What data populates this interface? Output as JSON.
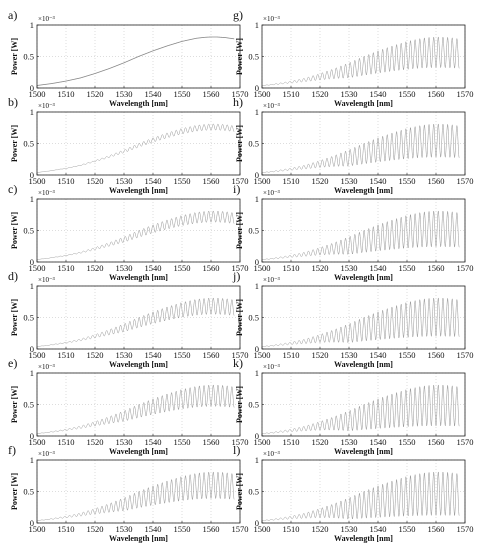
{
  "figure": {
    "panels": [
      {
        "letter": "a)",
        "col": 0,
        "row": 0,
        "mod_depth": 0.0,
        "mod_period_nm": 1.6,
        "envelope_only": true
      },
      {
        "letter": "b)",
        "col": 0,
        "row": 1,
        "mod_depth": 0.12,
        "mod_period_nm": 1.6
      },
      {
        "letter": "c)",
        "col": 0,
        "row": 2,
        "mod_depth": 0.22,
        "mod_period_nm": 1.6
      },
      {
        "letter": "d)",
        "col": 0,
        "row": 3,
        "mod_depth": 0.32,
        "mod_period_nm": 1.6
      },
      {
        "letter": "e)",
        "col": 0,
        "row": 4,
        "mod_depth": 0.42,
        "mod_period_nm": 1.6
      },
      {
        "letter": "f)",
        "col": 0,
        "row": 5,
        "mod_depth": 0.52,
        "mod_period_nm": 1.6
      },
      {
        "letter": "g)",
        "col": 1,
        "row": 0,
        "mod_depth": 0.6,
        "mod_period_nm": 1.6
      },
      {
        "letter": "h)",
        "col": 1,
        "row": 1,
        "mod_depth": 0.65,
        "mod_period_nm": 1.6
      },
      {
        "letter": "i)",
        "col": 1,
        "row": 2,
        "mod_depth": 0.7,
        "mod_period_nm": 1.6
      },
      {
        "letter": "j)",
        "col": 1,
        "row": 3,
        "mod_depth": 0.75,
        "mod_period_nm": 1.6
      },
      {
        "letter": "k)",
        "col": 1,
        "row": 4,
        "mod_depth": 0.8,
        "mod_period_nm": 1.6
      },
      {
        "letter": "l)",
        "col": 1,
        "row": 5,
        "mod_depth": 0.85,
        "mod_period_nm": 1.6
      }
    ]
  },
  "chart_data": {
    "type": "line",
    "xlabel": "Wavelength [nm]",
    "ylabel": "Power [W]",
    "y_exponent": "×10⁻³",
    "xlim": [
      1500,
      1570
    ],
    "ylim": [
      0,
      1
    ],
    "x_ticks": [
      1500,
      1510,
      1520,
      1530,
      1540,
      1550,
      1560,
      1570
    ],
    "x_tick_labels": [
      "1500",
      "1510",
      "1520",
      "1530",
      "1540",
      "1550",
      "1560",
      "1570"
    ],
    "y_ticks": [
      0,
      0.5,
      1
    ],
    "y_tick_labels": [
      "0",
      "0.5",
      "1"
    ],
    "grid": true,
    "envelope": {
      "x": [
        1500,
        1505,
        1510,
        1515,
        1520,
        1525,
        1530,
        1535,
        1540,
        1545,
        1550,
        1555,
        1558,
        1560,
        1562,
        1565,
        1568
      ],
      "y": [
        0.04,
        0.07,
        0.11,
        0.16,
        0.23,
        0.31,
        0.4,
        0.5,
        0.59,
        0.67,
        0.74,
        0.79,
        0.805,
        0.81,
        0.81,
        0.8,
        0.78
      ]
    }
  }
}
